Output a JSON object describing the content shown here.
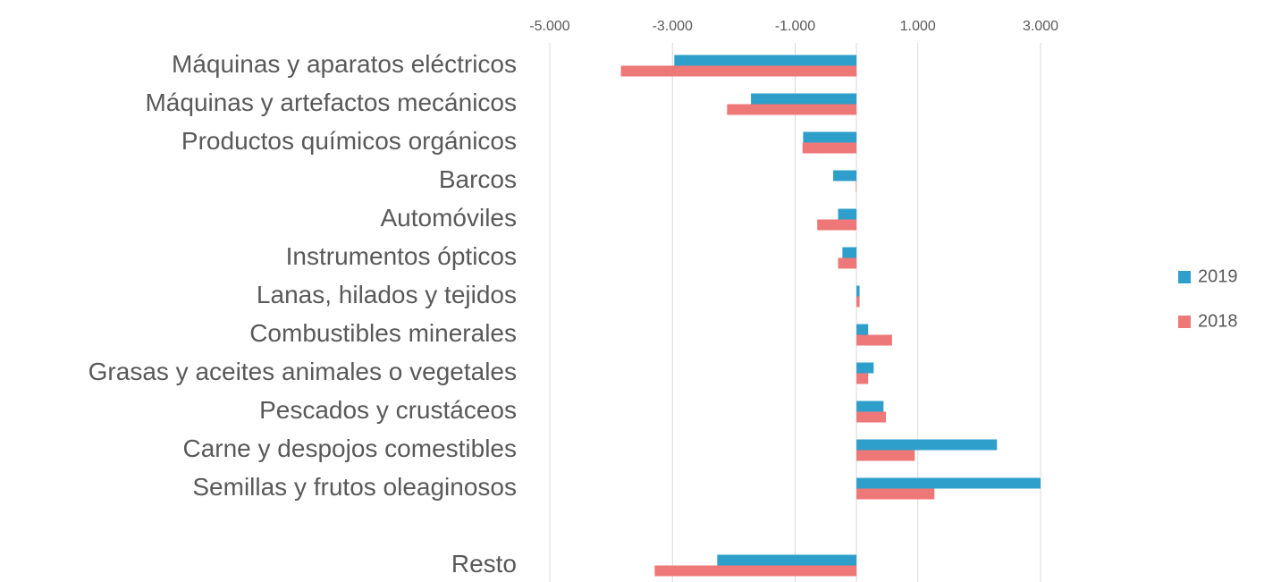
{
  "chart_data": {
    "type": "hbar",
    "categories": [
      "Máquinas y aparatos eléctricos",
      "Máquinas y artefactos mecánicos",
      "Productos químicos orgánicos",
      "Barcos",
      "Automóviles",
      "Instrumentos ópticos",
      "Lanas, hilados y tejidos",
      "Combustibles minerales",
      "Grasas y aceites animales o vegetales",
      "Pescados y crustáceos",
      "Carne y despojos comestibles",
      "Semillas y frutos oleaginosos",
      null,
      "Resto"
    ],
    "series": [
      {
        "name": "2019",
        "color": "#2e9fcb",
        "values": [
          -2970,
          -1720,
          -870,
          -380,
          -300,
          -230,
          50,
          190,
          280,
          440,
          2290,
          3000,
          null,
          -2270
        ]
      },
      {
        "name": "2018",
        "color": "#ee7777",
        "values": [
          -3840,
          -2110,
          -880,
          -10,
          -640,
          -300,
          50,
          580,
          190,
          480,
          950,
          1270,
          null,
          -3290
        ]
      }
    ],
    "xlim": [
      -5000,
      3000
    ],
    "xticks": [
      {
        "value": -5000,
        "label": "-5.000"
      },
      {
        "value": -3000,
        "label": "-3.000"
      },
      {
        "value": -1000,
        "label": "-1.000"
      },
      {
        "value": 1000,
        "label": "1.000"
      },
      {
        "value": 3000,
        "label": "3.000"
      }
    ],
    "grid": true,
    "legend": "right"
  }
}
